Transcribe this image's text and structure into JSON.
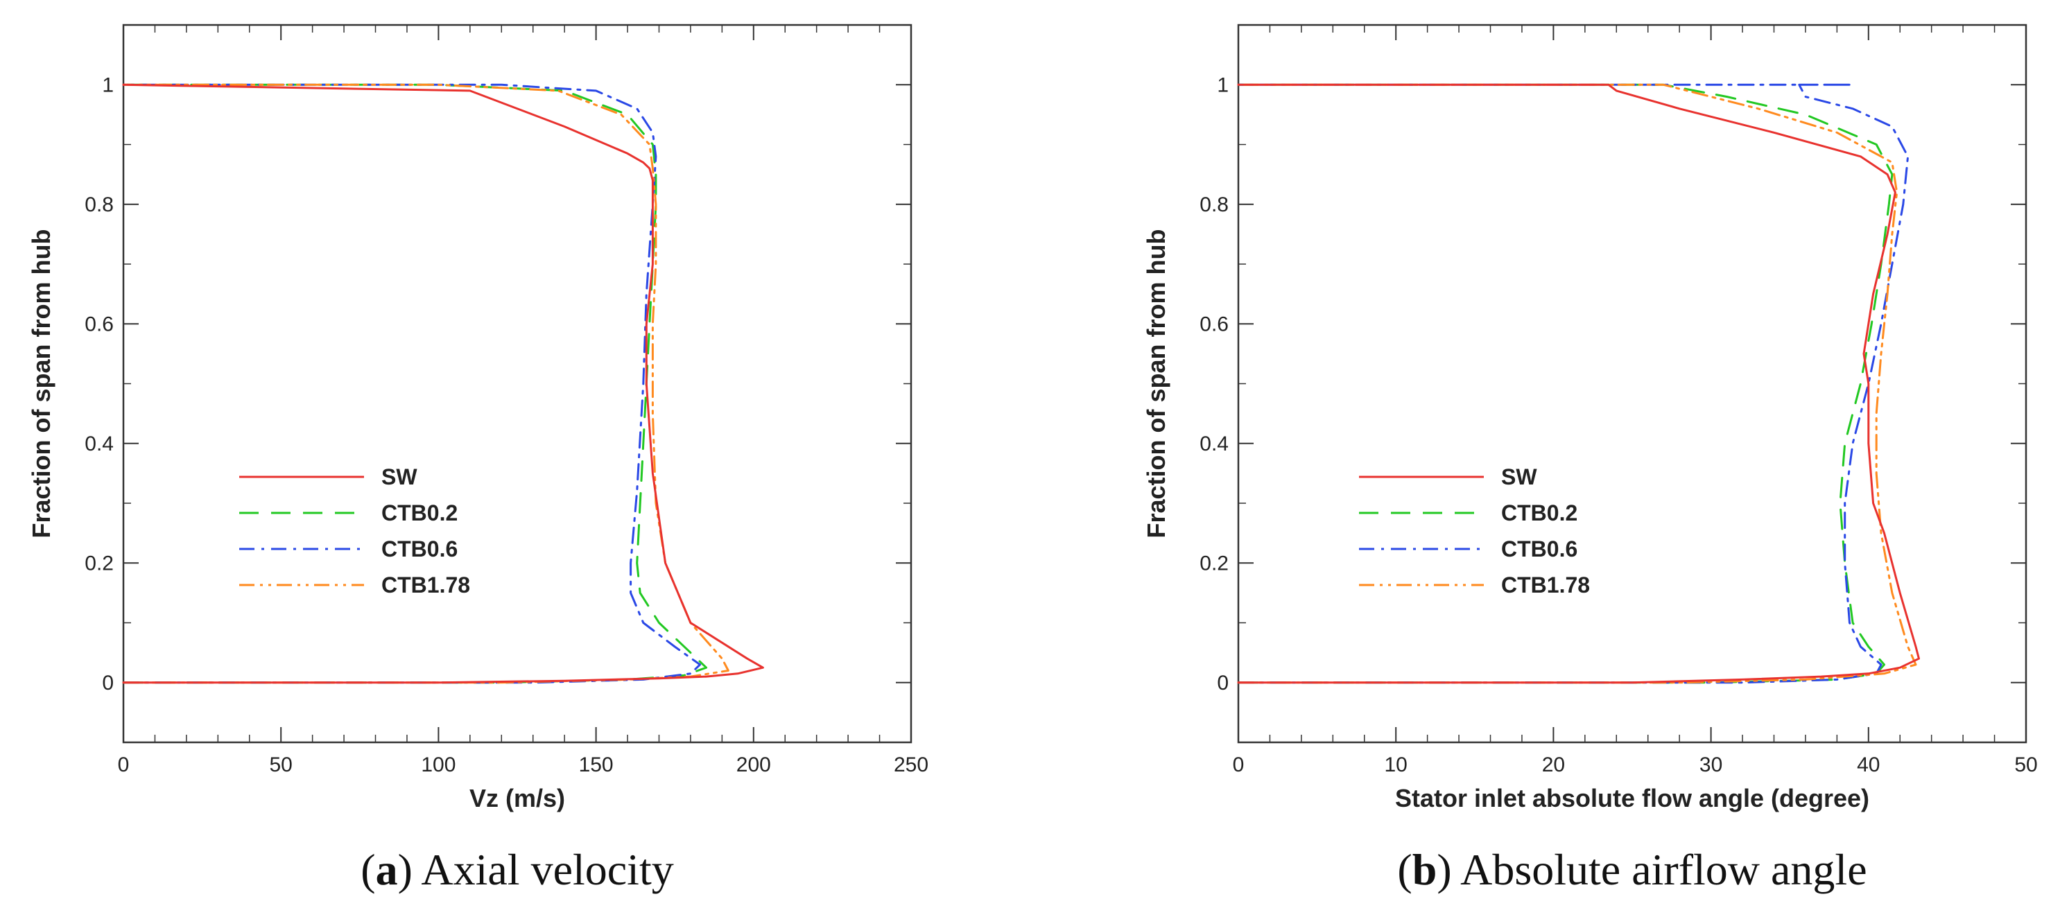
{
  "chart_data": [
    {
      "type": "line",
      "xlabel": "Vz (m/s)",
      "ylabel": "Fraction of span from hub",
      "xlim": [
        0,
        250
      ],
      "ylim": [
        -0.1,
        1.1
      ],
      "xticks": [
        0,
        50,
        100,
        150,
        200,
        250
      ],
      "yticks": [
        0,
        0.2,
        0.4,
        0.6,
        0.8,
        1
      ],
      "grid": false,
      "legend": "center-left",
      "caption_letter": "a",
      "caption_text": "Axial velocity",
      "series": [
        {
          "name": "SW",
          "color": "#e8322e",
          "dash": "solid",
          "x": [
            0,
            100,
            140,
            170,
            185,
            195,
            203,
            198,
            180,
            172,
            168,
            166,
            166,
            168,
            168,
            168,
            167,
            165,
            160,
            140,
            110,
            0
          ],
          "y": [
            0,
            0,
            0.003,
            0.007,
            0.01,
            0.015,
            0.025,
            0.04,
            0.1,
            0.2,
            0.35,
            0.5,
            0.6,
            0.7,
            0.8,
            0.84,
            0.86,
            0.87,
            0.885,
            0.93,
            0.99,
            1
          ]
        },
        {
          "name": "CTB0.2",
          "color": "#22c822",
          "dash": "28,18",
          "x": [
            0,
            120,
            160,
            178,
            185,
            180,
            170,
            164,
            163,
            165,
            167,
            168,
            169,
            169,
            168,
            160,
            140,
            100,
            0
          ],
          "y": [
            0,
            0,
            0.005,
            0.012,
            0.025,
            0.05,
            0.1,
            0.15,
            0.2,
            0.4,
            0.6,
            0.7,
            0.8,
            0.85,
            0.9,
            0.95,
            0.99,
            1,
            1
          ]
        },
        {
          "name": "CTB0.6",
          "color": "#2a48e6",
          "dash": "22,10,4,10",
          "x": [
            0,
            130,
            165,
            180,
            183,
            175,
            165,
            161,
            161,
            163,
            165,
            166,
            168,
            169,
            168,
            163,
            150,
            120,
            0
          ],
          "y": [
            0,
            0,
            0.005,
            0.015,
            0.03,
            0.06,
            0.1,
            0.15,
            0.2,
            0.32,
            0.5,
            0.65,
            0.8,
            0.88,
            0.92,
            0.96,
            0.99,
            1,
            1
          ]
        },
        {
          "name": "CTB1.78",
          "color": "#ff8a1e",
          "dash": "22,8,4,8,4,8",
          "x": [
            0,
            120,
            160,
            180,
            192,
            190,
            180,
            172,
            169,
            168,
            168,
            169,
            169,
            168,
            167,
            158,
            138,
            100,
            0
          ],
          "y": [
            0,
            0,
            0.005,
            0.01,
            0.02,
            0.04,
            0.1,
            0.2,
            0.3,
            0.45,
            0.6,
            0.7,
            0.8,
            0.86,
            0.9,
            0.95,
            0.99,
            1,
            1
          ]
        }
      ]
    },
    {
      "type": "line",
      "xlabel": "Stator inlet absolute flow angle (degree)",
      "ylabel": "Fraction of span from hub",
      "xlim": [
        0,
        50
      ],
      "ylim": [
        -0.1,
        1.1
      ],
      "xticks": [
        0,
        10,
        20,
        30,
        40,
        50
      ],
      "yticks": [
        0,
        0.2,
        0.4,
        0.6,
        0.8,
        1
      ],
      "grid": false,
      "legend": "center-left",
      "caption_letter": "b",
      "caption_text": "Absolute airflow angle",
      "series": [
        {
          "name": "SW",
          "color": "#e8322e",
          "dash": "solid",
          "x": [
            0,
            25,
            32,
            37,
            40,
            42,
            43.2,
            43,
            42,
            41,
            40.3,
            40,
            40,
            39.7,
            40.3,
            41.2,
            41.7,
            41.2,
            39.5,
            34,
            28,
            24,
            23.5,
            0
          ],
          "y": [
            0,
            0,
            0.005,
            0.01,
            0.015,
            0.025,
            0.04,
            0.06,
            0.15,
            0.25,
            0.3,
            0.4,
            0.5,
            0.55,
            0.65,
            0.75,
            0.82,
            0.85,
            0.88,
            0.92,
            0.96,
            0.99,
            1,
            1
          ]
        },
        {
          "name": "CTB0.2",
          "color": "#22c822",
          "dash": "28,18",
          "x": [
            0,
            30,
            38,
            40.5,
            41,
            40,
            39,
            38.5,
            38.2,
            38.5,
            39.5,
            40.2,
            40.8,
            41.3,
            41.5,
            40.5,
            36,
            31,
            27,
            0
          ],
          "y": [
            0,
            0,
            0.005,
            0.015,
            0.03,
            0.06,
            0.1,
            0.2,
            0.3,
            0.4,
            0.5,
            0.6,
            0.7,
            0.8,
            0.85,
            0.9,
            0.95,
            0.98,
            1,
            1
          ]
        },
        {
          "name": "CTB0.6",
          "color": "#2a48e6",
          "dash": "22,10,4,10",
          "x": [
            0,
            32,
            38,
            40.5,
            40.8,
            39.5,
            38.8,
            38.5,
            38.5,
            39,
            40,
            40.8,
            41.5,
            42.2,
            42.5,
            41.5,
            39,
            36,
            35.6,
            36.5,
            39,
            0
          ],
          "y": [
            0,
            0,
            0.005,
            0.015,
            0.03,
            0.06,
            0.1,
            0.2,
            0.3,
            0.4,
            0.5,
            0.6,
            0.7,
            0.8,
            0.88,
            0.93,
            0.96,
            0.98,
            1,
            1,
            1,
            1
          ]
        },
        {
          "name": "CTB1.78",
          "color": "#ff8a1e",
          "dash": "22,8,4,8,4,8",
          "x": [
            0,
            28,
            36,
            41,
            43,
            42.5,
            41.5,
            40.8,
            40.5,
            40.5,
            40.8,
            41.2,
            41.5,
            41.8,
            41.5,
            38,
            33,
            27,
            0
          ],
          "y": [
            0,
            0,
            0.005,
            0.015,
            0.03,
            0.06,
            0.15,
            0.25,
            0.35,
            0.45,
            0.55,
            0.65,
            0.75,
            0.82,
            0.87,
            0.92,
            0.96,
            1,
            1
          ]
        }
      ]
    }
  ]
}
